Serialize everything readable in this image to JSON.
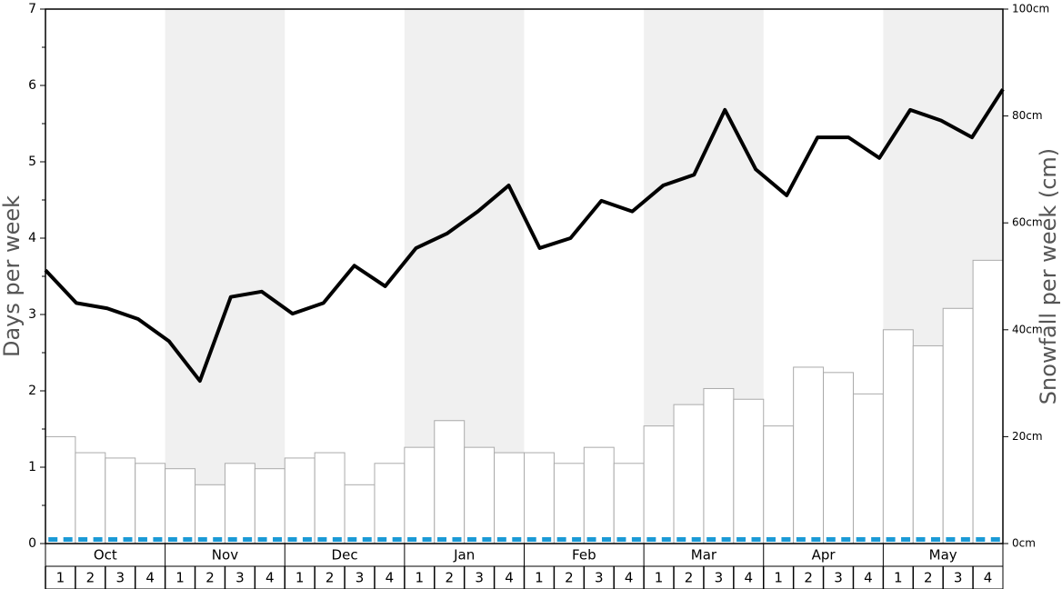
{
  "chart_data": {
    "type": "bar-line",
    "y_label": "Days per week",
    "y2_label": "Snowfall per week (cm)",
    "months": [
      "Oct",
      "Nov",
      "Dec",
      "Jan",
      "Feb",
      "Mar",
      "Apr",
      "May"
    ],
    "categories": [
      "1",
      "2",
      "3",
      "4",
      "1",
      "2",
      "3",
      "4",
      "1",
      "2",
      "3",
      "4",
      "1",
      "2",
      "3",
      "4",
      "1",
      "2",
      "3",
      "4",
      "1",
      "2",
      "3",
      "4",
      "1",
      "2",
      "3",
      "4",
      "1",
      "2",
      "3",
      "4"
    ],
    "series": [
      {
        "kind": "bar",
        "axis": "y2",
        "color": "#ffffff",
        "values": [
          20,
          17,
          16,
          15,
          14,
          11,
          15,
          14,
          16,
          17,
          11,
          15,
          18,
          23,
          18,
          17,
          17,
          15,
          18,
          15,
          22,
          26,
          29,
          27,
          22,
          33,
          32,
          28,
          40,
          37,
          44,
          53
        ]
      },
      {
        "kind": "line",
        "axis": "y",
        "color": "#000000",
        "values": [
          3.58,
          3.15,
          3.08,
          2.94,
          2.65,
          2.13,
          3.23,
          3.3,
          3.01,
          3.15,
          3.64,
          3.37,
          3.87,
          4.06,
          4.35,
          4.69,
          3.87,
          4.0,
          4.49,
          4.35,
          4.69,
          4.83,
          5.68,
          4.9,
          4.56,
          5.32,
          5.32,
          5.05,
          5.68,
          5.54,
          5.32,
          5.95
        ]
      },
      {
        "kind": "dash",
        "axis": "y",
        "color": "#1a9ad6",
        "values": [
          0.03,
          0.03,
          0.03,
          0.03,
          0.03,
          0.03,
          0.03,
          0.03,
          0.03,
          0.03,
          0.03,
          0.03,
          0.03,
          0.03,
          0.03,
          0.03,
          0.03,
          0.03,
          0.03,
          0.03,
          0.03,
          0.03,
          0.03,
          0.03,
          0.03,
          0.03,
          0.03,
          0.03,
          0.03,
          0.03,
          0.03,
          0.03
        ]
      }
    ],
    "ylim": [
      0,
      7
    ],
    "yticks": [
      0,
      1,
      2,
      3,
      4,
      5,
      6,
      7
    ],
    "y2lim": [
      0,
      100
    ],
    "y2ticks": [
      {
        "value": 0,
        "label": "0cm"
      },
      {
        "value": 20,
        "label": "20cm"
      },
      {
        "value": 40,
        "label": "40cm"
      },
      {
        "value": 60,
        "label": "60cm"
      },
      {
        "value": 80,
        "label": "80cm"
      },
      {
        "value": 100,
        "label": "100cm"
      }
    ],
    "band_color": "#f0f0f0"
  }
}
